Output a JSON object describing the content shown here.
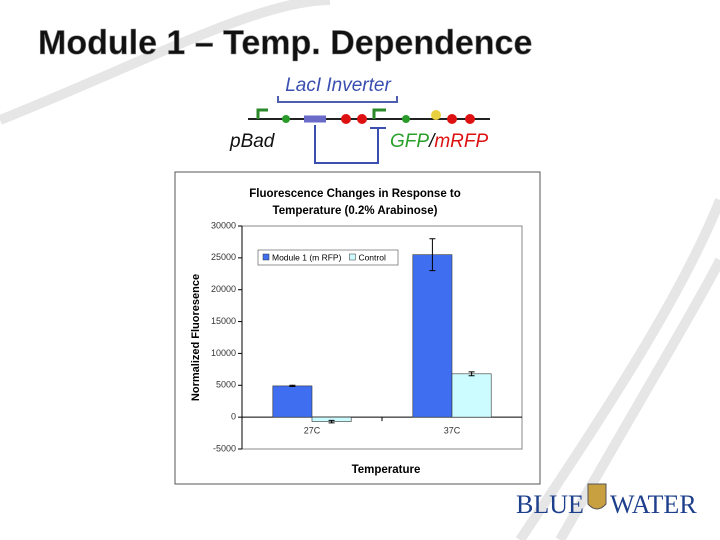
{
  "slide_title": "Module 1 – Temp. Dependence",
  "diagram": {
    "inverter_label": "LacI Inverter",
    "promoter_label": "pBad",
    "reporter_parts": [
      "GFP",
      "/",
      "mRFP"
    ]
  },
  "logo": {
    "left": "BLUE",
    "right": "WATER"
  },
  "chart_data": {
    "type": "bar",
    "title": [
      "Fluorescence Changes in Response to",
      "Temperature (0.2% Arabinose)"
    ],
    "xlabel": "Temperature",
    "ylabel": "Normalized Fluoresence",
    "categories": [
      "27C",
      "37C"
    ],
    "series": [
      {
        "name": "Module 1 (m RFP)",
        "color": "#3f6ff0",
        "values": [
          4900,
          25500
        ],
        "errors": [
          100,
          2500
        ]
      },
      {
        "name": "Control",
        "color": "#ccfcff",
        "values": [
          -700,
          6800
        ],
        "errors": [
          200,
          300
        ]
      }
    ],
    "ylim": [
      -5000,
      30000
    ],
    "yticks": [
      -5000,
      0,
      5000,
      10000,
      15000,
      20000,
      25000,
      30000
    ],
    "grid": false,
    "legend": "upper-left"
  }
}
